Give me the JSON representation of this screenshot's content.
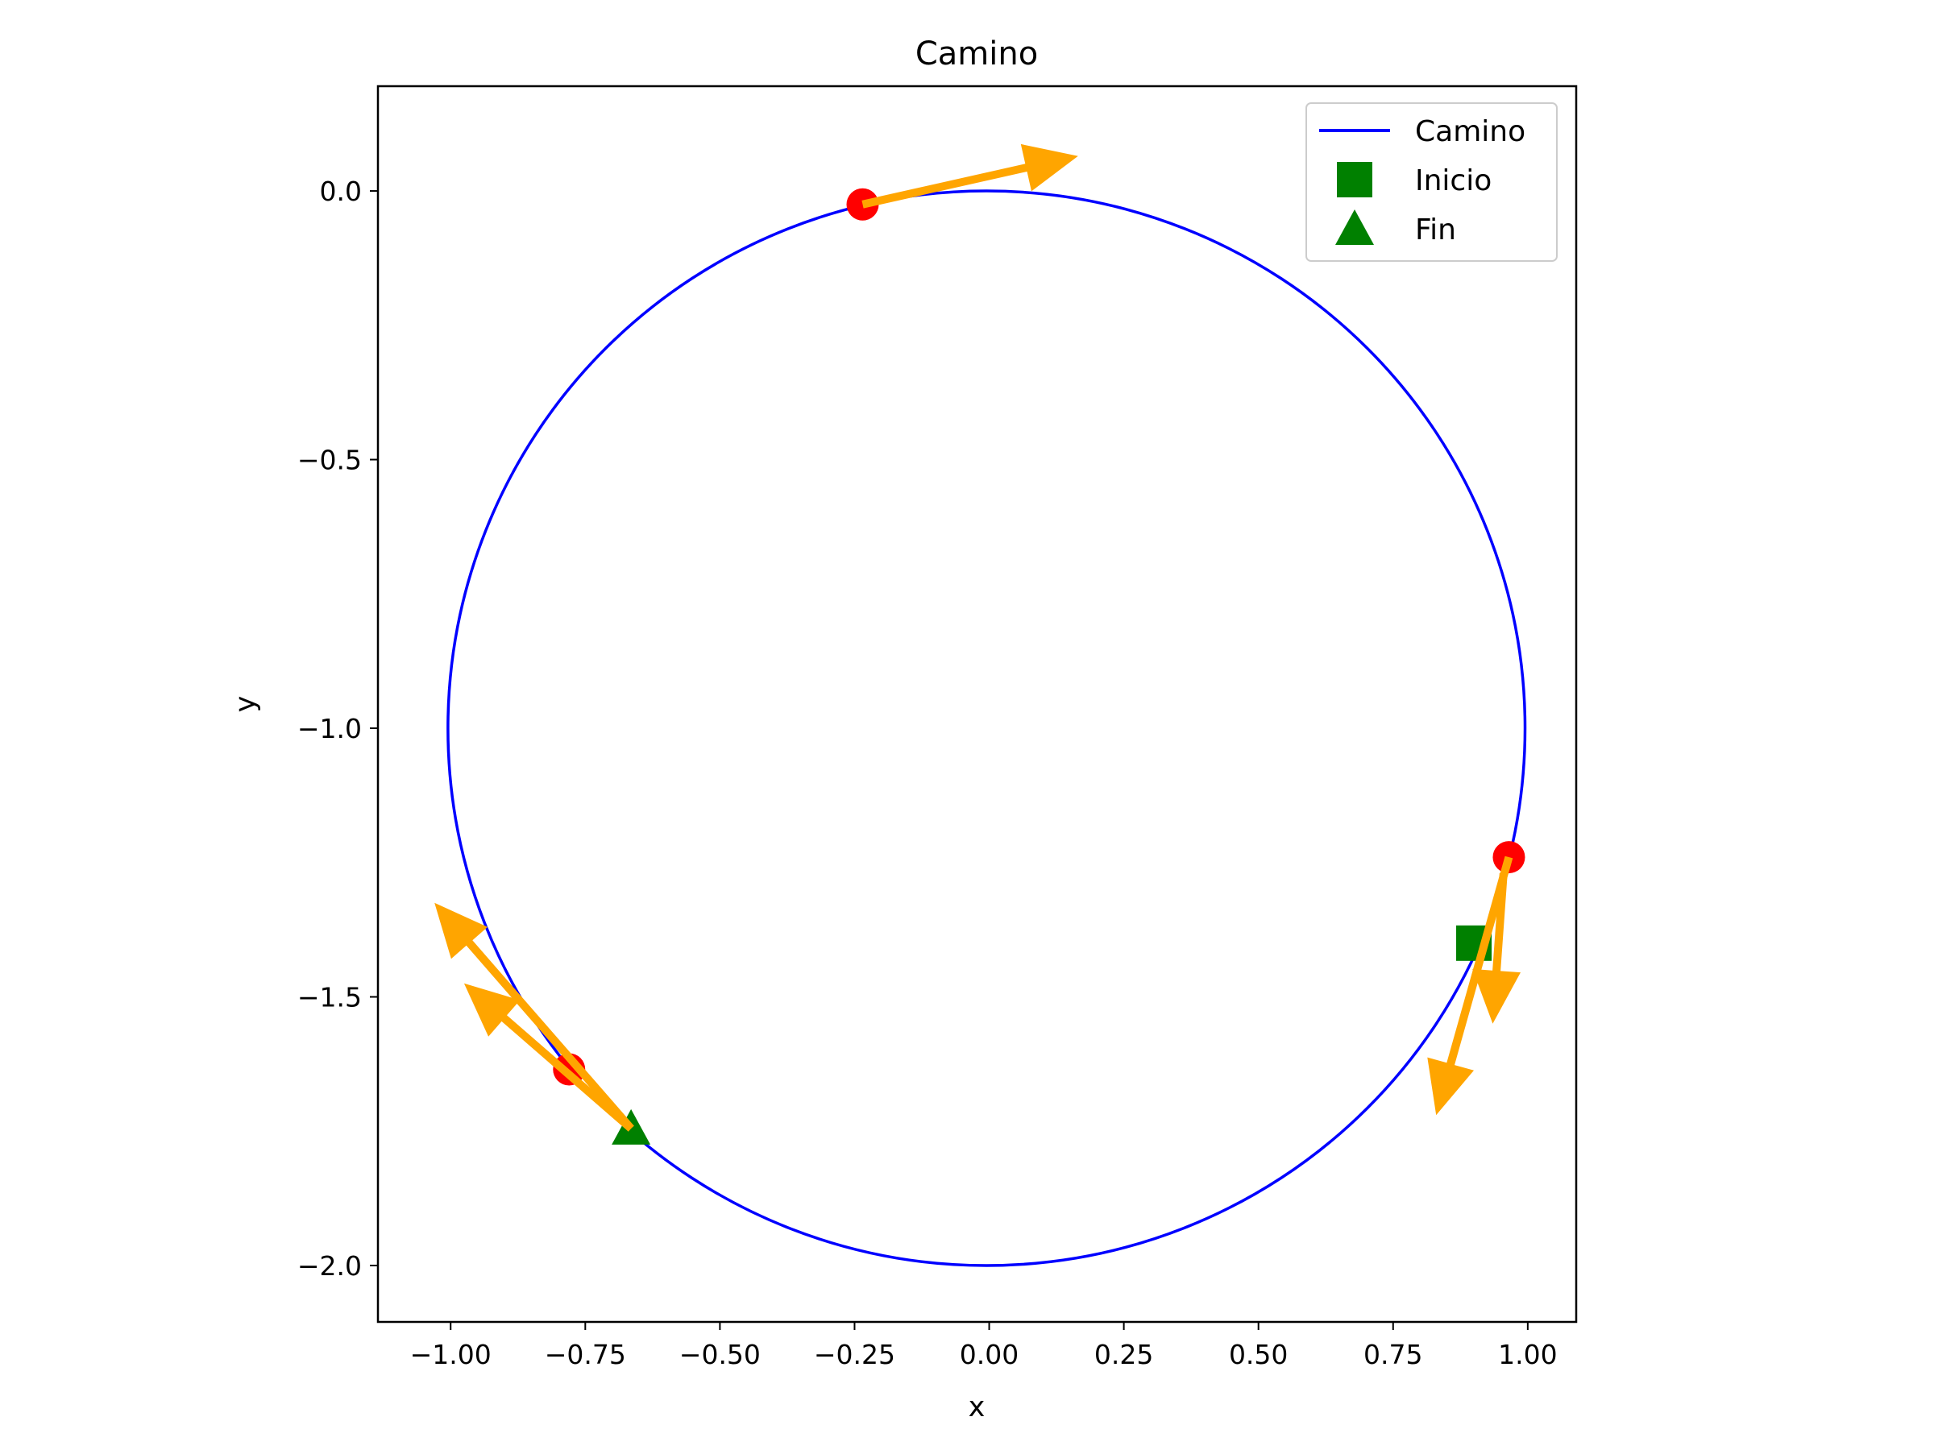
{
  "chart_data": {
    "type": "line",
    "title": "Camino",
    "xlabel": "x",
    "ylabel": "y",
    "xlim": [
      -1.135,
      1.09
    ],
    "ylim": [
      -2.105,
      0.195
    ],
    "equal_aspect": true,
    "grid": false,
    "legend": {
      "placement": "top-right",
      "entries": [
        {
          "label": "Camino",
          "marker": "line",
          "color": "#0000ff"
        },
        {
          "label": "Inicio",
          "marker": "square",
          "color": "#008000"
        },
        {
          "label": "Fin",
          "marker": "triangle",
          "color": "#008000"
        }
      ]
    },
    "x_ticks": [
      {
        "value": -1.0,
        "label": "−1.00"
      },
      {
        "value": -0.75,
        "label": "−0.75"
      },
      {
        "value": -0.5,
        "label": "−0.50"
      },
      {
        "value": -0.25,
        "label": "−0.25"
      },
      {
        "value": 0.0,
        "label": "0.00"
      },
      {
        "value": 0.25,
        "label": "0.25"
      },
      {
        "value": 0.5,
        "label": "0.50"
      },
      {
        "value": 0.75,
        "label": "0.75"
      },
      {
        "value": 1.0,
        "label": "1.00"
      }
    ],
    "y_ticks": [
      {
        "value": 0.0,
        "label": "0.0"
      },
      {
        "value": -0.5,
        "label": "−0.5"
      },
      {
        "value": -1.0,
        "label": "−1.0"
      },
      {
        "value": -1.5,
        "label": "−1.5"
      },
      {
        "value": -2.0,
        "label": "−2.0"
      }
    ],
    "series": [
      {
        "name": "Camino",
        "kind": "circle",
        "center": [
          -0.005,
          -1.0
        ],
        "radius": 1.0,
        "color": "#0000ff"
      }
    ],
    "start_point": {
      "name": "Inicio",
      "x": 0.9,
      "y": -1.4,
      "color": "#008000"
    },
    "end_point": {
      "name": "Fin",
      "x": -0.665,
      "y": -1.745,
      "color": "#008000"
    },
    "red_points": [
      {
        "x": -0.235,
        "y": -0.025,
        "color": "#ff0000"
      },
      {
        "x": 0.965,
        "y": -1.24,
        "color": "#ff0000"
      },
      {
        "x": -0.78,
        "y": -1.635,
        "color": "#ff0000"
      }
    ],
    "arrows": [
      {
        "x": -0.235,
        "y": -0.025,
        "x2": 0.165,
        "y2": 0.065,
        "color": "#ffa500"
      },
      {
        "x": 0.965,
        "y": -1.24,
        "x2": 0.83,
        "y2": -1.72,
        "color": "#ffa500"
      },
      {
        "x": 0.955,
        "y": -1.27,
        "x2": 0.935,
        "y2": -1.55,
        "color": "#ffa500"
      },
      {
        "x": -0.665,
        "y": -1.745,
        "x2": -1.03,
        "y2": -1.325,
        "color": "#ffa500"
      },
      {
        "x": -0.665,
        "y": -1.745,
        "x2": -0.975,
        "y2": -1.475,
        "color": "#ffa500"
      }
    ]
  }
}
